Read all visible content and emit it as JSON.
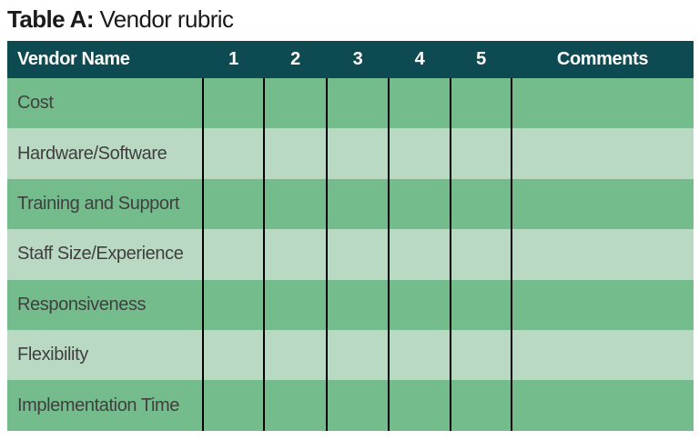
{
  "title": {
    "label_bold": "Table A:",
    "label_regular": "Vendor rubric"
  },
  "table": {
    "columns": [
      "Vendor Name",
      "1",
      "2",
      "3",
      "4",
      "5",
      "Comments"
    ],
    "rows": [
      {
        "label": "Cost",
        "scores": [
          "",
          "",
          "",
          "",
          ""
        ],
        "comments": ""
      },
      {
        "label": "Hardware/Software",
        "scores": [
          "",
          "",
          "",
          "",
          ""
        ],
        "comments": ""
      },
      {
        "label": "Training and Support",
        "scores": [
          "",
          "",
          "",
          "",
          ""
        ],
        "comments": ""
      },
      {
        "label": "Staff Size/Experience",
        "scores": [
          "",
          "",
          "",
          "",
          ""
        ],
        "comments": ""
      },
      {
        "label": "Responsiveness",
        "scores": [
          "",
          "",
          "",
          "",
          ""
        ],
        "comments": ""
      },
      {
        "label": "Flexibility",
        "scores": [
          "",
          "",
          "",
          "",
          ""
        ],
        "comments": ""
      },
      {
        "label": "Implementation Time",
        "scores": [
          "",
          "",
          "",
          "",
          ""
        ],
        "comments": ""
      }
    ]
  },
  "colors": {
    "header_bg": "#0d4a52",
    "header_text": "#ffffff",
    "row_odd_bg": "#75bc8d",
    "row_even_bg": "#bad9c3",
    "grid_line": "#000000",
    "title_text": "#1a1a1a",
    "row_label_text": "#3f3f3f"
  }
}
